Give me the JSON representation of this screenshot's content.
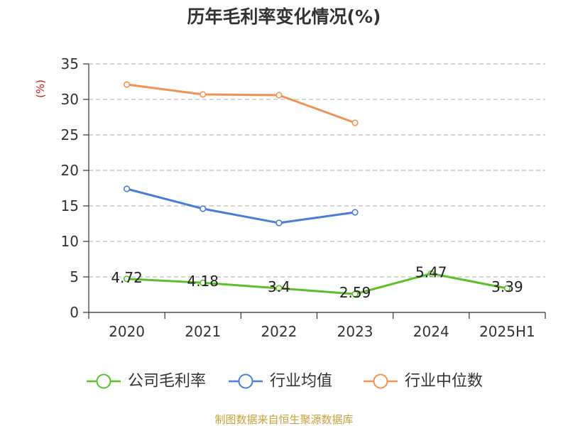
{
  "footer": "制图数据来自恒生聚源数据库",
  "colors": {
    "ylabel": "#cc1f1f",
    "footer": "#c9a23c",
    "grid": "#bdbdbd",
    "axis": "#333333"
  },
  "chart_data": {
    "type": "line",
    "title": "历年毛利率变化情况(%)",
    "ylabel": "(%)",
    "xlabel": "",
    "categories": [
      "2020",
      "2021",
      "2022",
      "2023",
      "2024",
      "2025H1"
    ],
    "ylim": [
      0,
      35
    ],
    "yticks": [
      0,
      5,
      10,
      15,
      20,
      25,
      30,
      35
    ],
    "grid": true,
    "legend_position": "bottom",
    "series": [
      {
        "name": "公司毛利率",
        "color": "#5cbf2a",
        "data_labels": true,
        "values": [
          4.72,
          4.18,
          3.4,
          2.59,
          5.47,
          3.39
        ]
      },
      {
        "name": "行业均值",
        "color": "#4a7ed6",
        "data_labels": false,
        "values": [
          17.4,
          14.6,
          12.6,
          14.1,
          null,
          null
        ]
      },
      {
        "name": "行业中位数",
        "color": "#f39153",
        "data_labels": false,
        "values": [
          32.1,
          30.7,
          30.6,
          26.7,
          null,
          null
        ]
      }
    ]
  }
}
